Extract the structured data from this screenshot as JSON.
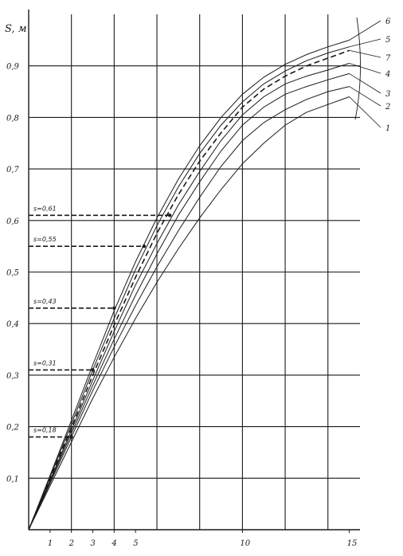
{
  "chart_data": {
    "type": "line",
    "title": "",
    "ylabel": "S, м",
    "xlabel": "",
    "xlim": [
      0,
      15.5
    ],
    "ylim": [
      0,
      1.0
    ],
    "grid": true,
    "x_ticks": [
      {
        "value": 1,
        "label": "1"
      },
      {
        "value": 2,
        "label": "2"
      },
      {
        "value": 3,
        "label": "3"
      },
      {
        "value": 4,
        "label": "4"
      },
      {
        "value": 5,
        "label": "5"
      },
      {
        "value": 10,
        "label": "10"
      },
      {
        "value": 15,
        "label": "15"
      }
    ],
    "y_ticks": [
      {
        "value": 0.1,
        "label": "0,1"
      },
      {
        "value": 0.2,
        "label": "0,2"
      },
      {
        "value": 0.3,
        "label": "0,3"
      },
      {
        "value": 0.4,
        "label": "0,4"
      },
      {
        "value": 0.5,
        "label": "0,5"
      },
      {
        "value": 0.6,
        "label": "0,6"
      },
      {
        "value": 0.7,
        "label": "0,7"
      },
      {
        "value": 0.8,
        "label": "0,8"
      },
      {
        "value": 0.9,
        "label": "0,9"
      }
    ],
    "series": [
      {
        "name": "1",
        "dashed": false,
        "x": [
          0,
          1,
          2,
          3,
          4,
          5,
          6,
          7,
          8,
          9,
          10,
          11,
          12,
          13,
          14,
          15
        ],
        "y": [
          0,
          0.085,
          0.17,
          0.255,
          0.335,
          0.41,
          0.48,
          0.545,
          0.605,
          0.66,
          0.71,
          0.75,
          0.785,
          0.81,
          0.825,
          0.84
        ]
      },
      {
        "name": "2",
        "dashed": false,
        "x": [
          0,
          1,
          2,
          3,
          4,
          5,
          6,
          7,
          8,
          9,
          10,
          11,
          12,
          13,
          14,
          15
        ],
        "y": [
          0,
          0.09,
          0.18,
          0.27,
          0.355,
          0.435,
          0.51,
          0.58,
          0.645,
          0.705,
          0.755,
          0.79,
          0.815,
          0.835,
          0.85,
          0.86
        ]
      },
      {
        "name": "3",
        "dashed": false,
        "x": [
          0,
          1,
          2,
          3,
          4,
          5,
          6,
          7,
          8,
          9,
          10,
          11,
          12,
          13,
          14,
          15
        ],
        "y": [
          0,
          0.093,
          0.187,
          0.28,
          0.37,
          0.455,
          0.535,
          0.61,
          0.675,
          0.735,
          0.785,
          0.82,
          0.845,
          0.86,
          0.873,
          0.885
        ]
      },
      {
        "name": "4",
        "dashed": false,
        "x": [
          0,
          1,
          2,
          3,
          4,
          5,
          6,
          7,
          8,
          9,
          10,
          11,
          12,
          13,
          14,
          15
        ],
        "y": [
          0,
          0.096,
          0.193,
          0.29,
          0.385,
          0.475,
          0.555,
          0.63,
          0.695,
          0.755,
          0.805,
          0.84,
          0.865,
          0.88,
          0.892,
          0.905
        ]
      },
      {
        "name": "7",
        "dashed": true,
        "x": [
          0,
          1,
          2,
          3,
          4,
          5,
          6,
          7,
          8,
          9,
          10,
          11,
          12,
          13,
          14,
          15
        ],
        "y": [
          0,
          0.099,
          0.198,
          0.3,
          0.397,
          0.49,
          0.575,
          0.65,
          0.715,
          0.77,
          0.82,
          0.855,
          0.88,
          0.9,
          0.915,
          0.93
        ]
      },
      {
        "name": "5",
        "dashed": false,
        "x": [
          0,
          1,
          2,
          3,
          4,
          5,
          6,
          7,
          8,
          9,
          10,
          11,
          12,
          13,
          14,
          15
        ],
        "y": [
          0,
          0.102,
          0.205,
          0.31,
          0.41,
          0.505,
          0.59,
          0.665,
          0.73,
          0.785,
          0.83,
          0.865,
          0.89,
          0.91,
          0.925,
          0.937
        ]
      },
      {
        "name": "6",
        "dashed": false,
        "x": [
          0,
          1,
          2,
          3,
          4,
          5,
          6,
          7,
          8,
          9,
          10,
          11,
          12,
          13,
          14,
          15
        ],
        "y": [
          0,
          0.105,
          0.212,
          0.32,
          0.425,
          0.52,
          0.605,
          0.68,
          0.745,
          0.8,
          0.845,
          0.878,
          0.903,
          0.922,
          0.937,
          0.95
        ]
      }
    ],
    "markers": [
      {
        "label": "s=0,18",
        "x": 2,
        "y": 0.18
      },
      {
        "label": "s=0,31",
        "x": 3,
        "y": 0.31
      },
      {
        "label": "s=0,43",
        "x": 4,
        "y": 0.43
      },
      {
        "label": "s=0,55",
        "x": 5.4,
        "y": 0.55
      },
      {
        "label": "s=0,61",
        "x": 6.6,
        "y": 0.61
      }
    ]
  }
}
